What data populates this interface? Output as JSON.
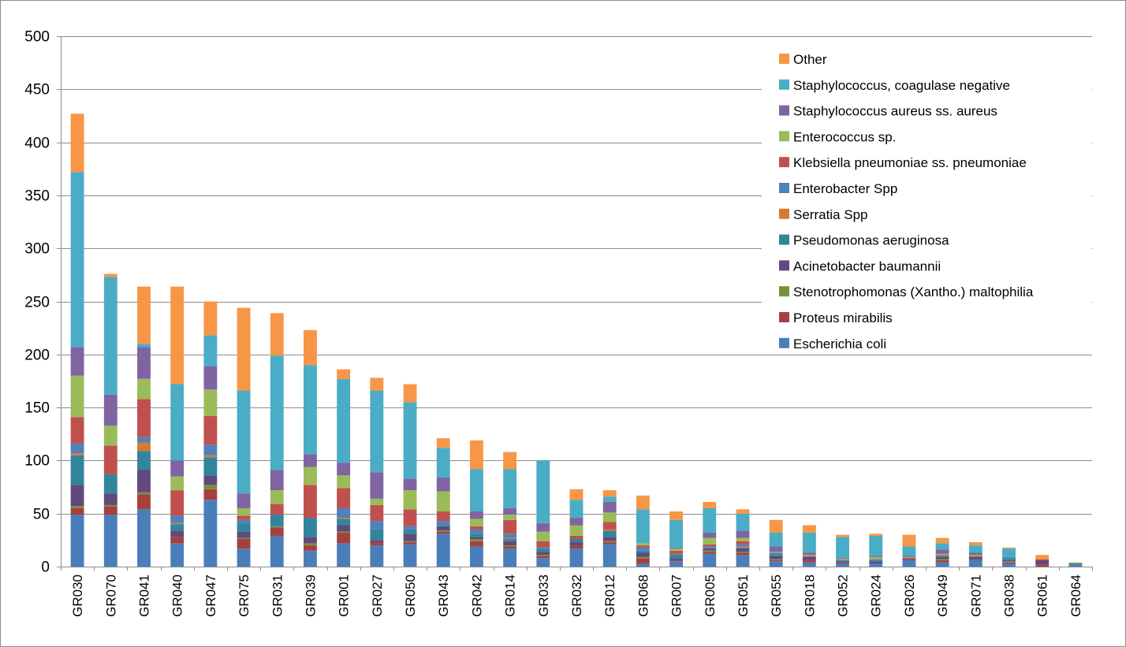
{
  "chart_data": {
    "type": "bar",
    "stacked": true,
    "title": "",
    "xlabel": "",
    "ylabel": "",
    "ylim": [
      0,
      500
    ],
    "y_ticks": [
      0,
      50,
      100,
      150,
      200,
      250,
      300,
      350,
      400,
      450,
      500
    ],
    "grid": true,
    "legend_position": "top-right",
    "categories": [
      "GR030",
      "GR070",
      "GR041",
      "GR040",
      "GR047",
      "GR075",
      "GR031",
      "GR039",
      "GR001",
      "GR027",
      "GR050",
      "GR043",
      "GR042",
      "GR014",
      "GR033",
      "GR032",
      "GR012",
      "GR068",
      "GR007",
      "GR005",
      "GR051",
      "GR055",
      "GR018",
      "GR052",
      "GR024",
      "GR026",
      "GR049",
      "GR071",
      "GR038",
      "GR061",
      "GR064"
    ],
    "series": [
      {
        "name": "Escherichia coli",
        "color": "#4a7ebb",
        "values": [
          49,
          49,
          54,
          22,
          63,
          17,
          29,
          15,
          22,
          20,
          21,
          31,
          19,
          17,
          8,
          17,
          21,
          3,
          5,
          12,
          11,
          5,
          4,
          3,
          3,
          6,
          4,
          6,
          3,
          0,
          2
        ]
      },
      {
        "name": "Proteus mirabilis",
        "color": "#a7403d",
        "values": [
          6,
          8,
          14,
          6,
          10,
          9,
          8,
          5,
          10,
          3,
          2,
          2,
          5,
          2,
          2,
          3,
          2,
          5,
          1,
          2,
          2,
          1,
          2,
          1,
          0,
          1,
          2,
          1,
          1,
          2,
          0
        ]
      },
      {
        "name": "Stenotrophomonas (Xantho.) maltophilia",
        "color": "#76923c",
        "values": [
          2,
          1,
          2,
          0,
          4,
          1,
          1,
          2,
          1,
          0,
          1,
          1,
          2,
          1,
          1,
          0,
          1,
          1,
          0,
          1,
          1,
          1,
          0,
          0,
          0,
          0,
          1,
          0,
          1,
          0,
          0
        ]
      },
      {
        "name": "Acinetobacter baumannii",
        "color": "#604a7b",
        "values": [
          20,
          11,
          21,
          6,
          9,
          6,
          0,
          6,
          6,
          2,
          7,
          4,
          2,
          4,
          3,
          3,
          4,
          4,
          2,
          2,
          3,
          3,
          3,
          1,
          2,
          1,
          2,
          2,
          1,
          4,
          0
        ]
      },
      {
        "name": "Pseudomonas aeruginosa",
        "color": "#31859c",
        "values": [
          28,
          18,
          18,
          6,
          17,
          8,
          11,
          18,
          6,
          10,
          4,
          1,
          3,
          2,
          3,
          3,
          6,
          2,
          3,
          1,
          1,
          1,
          0,
          1,
          1,
          0,
          1,
          1,
          2,
          0,
          1
        ]
      },
      {
        "name": "Serratia Spp",
        "color": "#d57a35",
        "values": [
          2,
          0,
          8,
          1,
          2,
          0,
          0,
          0,
          1,
          0,
          0,
          0,
          0,
          1,
          0,
          0,
          1,
          0,
          0,
          0,
          1,
          0,
          0,
          0,
          0,
          0,
          0,
          0,
          0,
          0,
          0
        ]
      },
      {
        "name": "Enterobacter Spp",
        "color": "#4f81bd",
        "values": [
          9,
          0,
          5,
          7,
          10,
          3,
          0,
          0,
          9,
          8,
          3,
          4,
          4,
          4,
          1,
          0,
          0,
          3,
          1,
          1,
          2,
          2,
          0,
          0,
          1,
          0,
          0,
          0,
          1,
          0,
          0
        ]
      },
      {
        "name": "Klebsiella pneumoniae ss. pneumoniae",
        "color": "#c0504d",
        "values": [
          25,
          27,
          36,
          24,
          27,
          4,
          10,
          31,
          19,
          15,
          16,
          9,
          3,
          13,
          6,
          3,
          7,
          2,
          3,
          2,
          3,
          0,
          1,
          0,
          0,
          0,
          1,
          0,
          0,
          1,
          0
        ]
      },
      {
        "name": "Enterococcus sp.",
        "color": "#9bbb59",
        "values": [
          39,
          19,
          19,
          13,
          25,
          7,
          13,
          17,
          12,
          6,
          18,
          19,
          7,
          5,
          9,
          10,
          9,
          2,
          2,
          6,
          3,
          1,
          1,
          1,
          2,
          1,
          1,
          1,
          0,
          0,
          1
        ]
      },
      {
        "name": "Staphylococcus aureus ss. aureus",
        "color": "#8064a2",
        "values": [
          27,
          29,
          30,
          15,
          22,
          14,
          19,
          12,
          12,
          25,
          11,
          13,
          7,
          6,
          8,
          7,
          10,
          0,
          1,
          5,
          7,
          5,
          2,
          1,
          1,
          1,
          4,
          2,
          0,
          0,
          0
        ]
      },
      {
        "name": "Staphylococcus, coagulase negative",
        "color": "#4bacc6",
        "values": [
          165,
          111,
          3,
          72,
          29,
          97,
          108,
          84,
          79,
          77,
          72,
          28,
          40,
          37,
          59,
          17,
          5,
          32,
          26,
          23,
          16,
          13,
          19,
          20,
          19,
          9,
          6,
          7,
          8,
          0,
          0
        ]
      },
      {
        "name": "Other",
        "color": "#f79646",
        "values": [
          55,
          3,
          54,
          92,
          32,
          78,
          40,
          33,
          9,
          12,
          17,
          9,
          27,
          16,
          0,
          10,
          6,
          13,
          8,
          6,
          4,
          12,
          7,
          2,
          2,
          11,
          5,
          3,
          1,
          4,
          0
        ]
      }
    ]
  }
}
